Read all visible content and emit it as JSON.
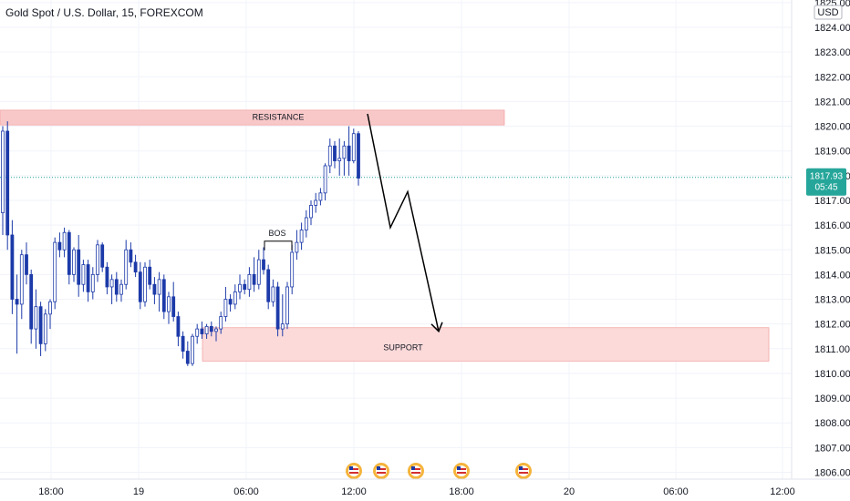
{
  "chart_data": {
    "type": "candlestick",
    "title": "Gold Spot / U.S. Dollar, 15, FOREXCOM",
    "currency": "USD",
    "y_axis": {
      "ticks": [
        "1806.00",
        "1807.00",
        "1808.00",
        "1809.00",
        "1810.00",
        "1811.00",
        "1812.00",
        "1813.00",
        "1814.00",
        "1815.00",
        "1816.00",
        "1817.00",
        "1818.00",
        "1819.00",
        "1820.00",
        "1821.00",
        "1822.00",
        "1823.00",
        "1824.00",
        "1825.00"
      ],
      "range": [
        1805.7,
        1825.2
      ],
      "position": "right"
    },
    "x_axis": {
      "ticks": [
        "18:00",
        "19",
        "06:00",
        "12:00",
        "18:00",
        "20",
        "06:00",
        "12:00"
      ]
    },
    "last_price": {
      "value": "1817.93",
      "countdown": "05:45",
      "color": "#26a69a"
    },
    "zones": [
      {
        "label": "RESISTANCE",
        "low": 1820.05,
        "high": 1820.65,
        "color": "#f8c8c8"
      },
      {
        "label": "SUPPORT",
        "low": 1810.5,
        "high": 1811.85,
        "color": "#fcdada"
      }
    ],
    "annotations": [
      {
        "label": "BOS",
        "level": 1815.35
      }
    ],
    "projection_path": [
      1820.5,
      1815.9,
      1817.35,
      1811.7
    ],
    "event_icons": [
      "us-flag-icon",
      "us-flag-icon",
      "us-flag-icon",
      "us-flag-icon",
      "us-flag-icon"
    ],
    "colors": {
      "up_candle": "#ffffff",
      "down_candle": "#1c3aa9",
      "candle_outline": "#1c3aa9"
    },
    "series": [
      {
        "ohlc": [
          [
            1816.5,
            1820.0,
            1815.6,
            1819.8
          ],
          [
            1819.8,
            1820.2,
            1815.0,
            1815.6
          ],
          [
            1815.6,
            1816.2,
            1812.4,
            1813.0
          ],
          [
            1813.0,
            1814.0,
            1810.8,
            1812.8
          ],
          [
            1812.8,
            1815.0,
            1812.2,
            1814.8
          ],
          [
            1814.8,
            1815.3,
            1813.6,
            1814.0
          ],
          [
            1814.0,
            1814.2,
            1811.2,
            1811.8
          ],
          [
            1811.8,
            1813.4,
            1811.0,
            1812.7
          ],
          [
            1812.7,
            1812.9,
            1810.7,
            1811.2
          ],
          [
            1811.2,
            1812.6,
            1810.9,
            1812.4
          ],
          [
            1812.4,
            1813.0,
            1811.8,
            1812.9
          ],
          [
            1812.9,
            1815.5,
            1812.6,
            1815.3
          ],
          [
            1815.3,
            1815.7,
            1814.7,
            1815.0
          ],
          [
            1815.0,
            1815.9,
            1814.7,
            1815.7
          ],
          [
            1815.7,
            1815.8,
            1813.6,
            1814.0
          ],
          [
            1814.0,
            1815.1,
            1813.7,
            1815.0
          ],
          [
            1815.0,
            1815.6,
            1813.1,
            1813.6
          ],
          [
            1813.6,
            1814.6,
            1813.3,
            1814.4
          ],
          [
            1814.4,
            1814.6,
            1812.9,
            1813.3
          ],
          [
            1813.3,
            1814.3,
            1813.0,
            1814.0
          ],
          [
            1814.0,
            1815.4,
            1813.7,
            1815.2
          ],
          [
            1815.2,
            1815.3,
            1814.1,
            1814.3
          ],
          [
            1814.3,
            1814.5,
            1813.2,
            1813.5
          ],
          [
            1813.5,
            1814.0,
            1812.8,
            1813.8
          ],
          [
            1813.8,
            1814.1,
            1812.9,
            1813.2
          ],
          [
            1813.2,
            1813.8,
            1812.9,
            1813.6
          ],
          [
            1813.6,
            1815.4,
            1813.4,
            1815.0
          ],
          [
            1815.0,
            1815.3,
            1814.3,
            1814.5
          ],
          [
            1814.5,
            1814.8,
            1813.9,
            1814.1
          ],
          [
            1814.1,
            1814.5,
            1812.6,
            1812.9
          ],
          [
            1812.9,
            1814.5,
            1812.7,
            1814.3
          ],
          [
            1814.3,
            1814.6,
            1813.4,
            1813.6
          ],
          [
            1813.6,
            1813.9,
            1812.8,
            1813.2
          ],
          [
            1813.2,
            1814.1,
            1812.5,
            1813.8
          ],
          [
            1813.8,
            1814.0,
            1812.2,
            1812.5
          ],
          [
            1812.5,
            1813.3,
            1812.0,
            1813.1
          ],
          [
            1813.1,
            1813.7,
            1812.1,
            1812.3
          ],
          [
            1812.3,
            1812.5,
            1811.1,
            1811.5
          ],
          [
            1811.5,
            1811.7,
            1810.6,
            1810.9
          ],
          [
            1810.9,
            1811.3,
            1810.3,
            1810.4
          ],
          [
            1810.4,
            1811.6,
            1810.3,
            1811.5
          ],
          [
            1811.5,
            1812.0,
            1811.2,
            1811.8
          ],
          [
            1811.8,
            1812.1,
            1811.4,
            1811.6
          ],
          [
            1811.6,
            1812.0,
            1811.4,
            1811.9
          ],
          [
            1811.9,
            1812.1,
            1811.5,
            1811.7
          ],
          [
            1811.7,
            1811.9,
            1811.3,
            1811.8
          ],
          [
            1811.8,
            1812.5,
            1811.6,
            1812.3
          ],
          [
            1812.3,
            1813.5,
            1812.1,
            1813.0
          ],
          [
            1813.0,
            1813.2,
            1812.5,
            1812.8
          ],
          [
            1812.8,
            1813.6,
            1812.6,
            1813.3
          ],
          [
            1813.3,
            1814.0,
            1813.0,
            1813.6
          ],
          [
            1813.6,
            1813.8,
            1813.2,
            1813.4
          ],
          [
            1813.4,
            1814.3,
            1813.1,
            1814.0
          ],
          [
            1814.0,
            1814.7,
            1813.3,
            1813.6
          ],
          [
            1813.6,
            1815.0,
            1813.4,
            1814.6
          ],
          [
            1814.6,
            1815.1,
            1814.0,
            1814.2
          ],
          [
            1814.2,
            1814.4,
            1812.6,
            1812.9
          ],
          [
            1812.9,
            1813.8,
            1812.7,
            1813.5
          ],
          [
            1813.5,
            1813.7,
            1811.5,
            1811.8
          ],
          [
            1811.8,
            1813.2,
            1811.5,
            1812.0
          ],
          [
            1812.0,
            1813.7,
            1811.8,
            1813.5
          ],
          [
            1813.5,
            1815.2,
            1813.2,
            1814.9
          ],
          [
            1814.9,
            1815.8,
            1814.6,
            1815.3
          ],
          [
            1815.3,
            1816.1,
            1815.0,
            1815.8
          ],
          [
            1815.8,
            1816.6,
            1815.5,
            1816.3
          ],
          [
            1816.3,
            1817.0,
            1816.0,
            1816.8
          ],
          [
            1816.8,
            1817.3,
            1816.5,
            1817.0
          ],
          [
            1817.0,
            1817.5,
            1816.8,
            1817.3
          ],
          [
            1817.3,
            1818.5,
            1817.0,
            1818.4
          ],
          [
            1818.4,
            1819.5,
            1818.1,
            1819.2
          ],
          [
            1819.2,
            1819.4,
            1818.3,
            1818.6
          ],
          [
            1818.6,
            1819.5,
            1818.0,
            1818.7
          ],
          [
            1818.7,
            1819.4,
            1818.0,
            1819.2
          ],
          [
            1819.2,
            1820.0,
            1818.0,
            1818.6
          ],
          [
            1818.6,
            1819.9,
            1818.5,
            1819.7
          ],
          [
            1819.7,
            1819.8,
            1817.6,
            1817.9
          ]
        ]
      }
    ]
  }
}
